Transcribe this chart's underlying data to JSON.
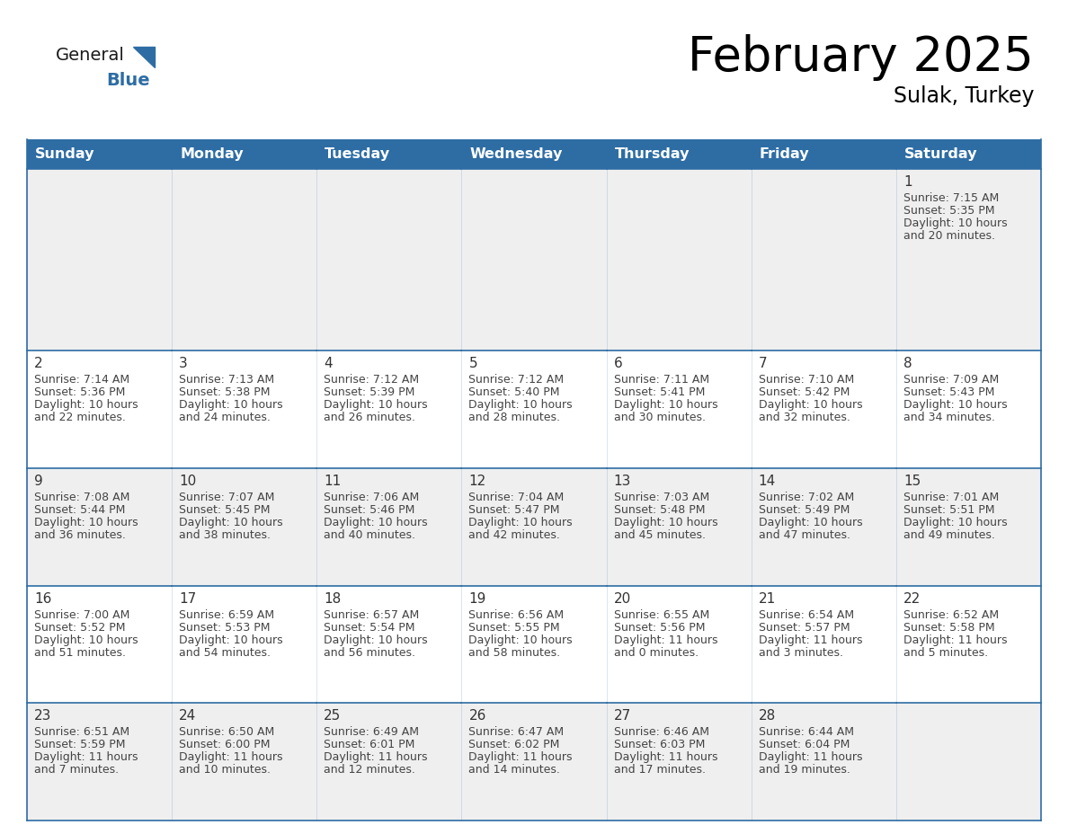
{
  "title": "February 2025",
  "subtitle": "Sulak, Turkey",
  "days_of_week": [
    "Sunday",
    "Monday",
    "Tuesday",
    "Wednesday",
    "Thursday",
    "Friday",
    "Saturday"
  ],
  "header_bg": "#2E6DA4",
  "header_text": "#FFFFFF",
  "cell_bg_gray": "#EFEFEF",
  "cell_bg_white": "#FFFFFF",
  "border_color": "#2E6DA4",
  "text_color": "#444444",
  "day_num_color": "#333333",
  "general_blue_color": "#2E6DA4",
  "calendar": [
    [
      null,
      null,
      null,
      null,
      null,
      null,
      {
        "day": 1,
        "sunrise": "7:15 AM",
        "sunset": "5:35 PM",
        "daylight": "10 hours",
        "daylight2": "and 20 minutes."
      }
    ],
    [
      {
        "day": 2,
        "sunrise": "7:14 AM",
        "sunset": "5:36 PM",
        "daylight": "10 hours",
        "daylight2": "and 22 minutes."
      },
      {
        "day": 3,
        "sunrise": "7:13 AM",
        "sunset": "5:38 PM",
        "daylight": "10 hours",
        "daylight2": "and 24 minutes."
      },
      {
        "day": 4,
        "sunrise": "7:12 AM",
        "sunset": "5:39 PM",
        "daylight": "10 hours",
        "daylight2": "and 26 minutes."
      },
      {
        "day": 5,
        "sunrise": "7:12 AM",
        "sunset": "5:40 PM",
        "daylight": "10 hours",
        "daylight2": "and 28 minutes."
      },
      {
        "day": 6,
        "sunrise": "7:11 AM",
        "sunset": "5:41 PM",
        "daylight": "10 hours",
        "daylight2": "and 30 minutes."
      },
      {
        "day": 7,
        "sunrise": "7:10 AM",
        "sunset": "5:42 PM",
        "daylight": "10 hours",
        "daylight2": "and 32 minutes."
      },
      {
        "day": 8,
        "sunrise": "7:09 AM",
        "sunset": "5:43 PM",
        "daylight": "10 hours",
        "daylight2": "and 34 minutes."
      }
    ],
    [
      {
        "day": 9,
        "sunrise": "7:08 AM",
        "sunset": "5:44 PM",
        "daylight": "10 hours",
        "daylight2": "and 36 minutes."
      },
      {
        "day": 10,
        "sunrise": "7:07 AM",
        "sunset": "5:45 PM",
        "daylight": "10 hours",
        "daylight2": "and 38 minutes."
      },
      {
        "day": 11,
        "sunrise": "7:06 AM",
        "sunset": "5:46 PM",
        "daylight": "10 hours",
        "daylight2": "and 40 minutes."
      },
      {
        "day": 12,
        "sunrise": "7:04 AM",
        "sunset": "5:47 PM",
        "daylight": "10 hours",
        "daylight2": "and 42 minutes."
      },
      {
        "day": 13,
        "sunrise": "7:03 AM",
        "sunset": "5:48 PM",
        "daylight": "10 hours",
        "daylight2": "and 45 minutes."
      },
      {
        "day": 14,
        "sunrise": "7:02 AM",
        "sunset": "5:49 PM",
        "daylight": "10 hours",
        "daylight2": "and 47 minutes."
      },
      {
        "day": 15,
        "sunrise": "7:01 AM",
        "sunset": "5:51 PM",
        "daylight": "10 hours",
        "daylight2": "and 49 minutes."
      }
    ],
    [
      {
        "day": 16,
        "sunrise": "7:00 AM",
        "sunset": "5:52 PM",
        "daylight": "10 hours",
        "daylight2": "and 51 minutes."
      },
      {
        "day": 17,
        "sunrise": "6:59 AM",
        "sunset": "5:53 PM",
        "daylight": "10 hours",
        "daylight2": "and 54 minutes."
      },
      {
        "day": 18,
        "sunrise": "6:57 AM",
        "sunset": "5:54 PM",
        "daylight": "10 hours",
        "daylight2": "and 56 minutes."
      },
      {
        "day": 19,
        "sunrise": "6:56 AM",
        "sunset": "5:55 PM",
        "daylight": "10 hours",
        "daylight2": "and 58 minutes."
      },
      {
        "day": 20,
        "sunrise": "6:55 AM",
        "sunset": "5:56 PM",
        "daylight": "11 hours",
        "daylight2": "and 0 minutes."
      },
      {
        "day": 21,
        "sunrise": "6:54 AM",
        "sunset": "5:57 PM",
        "daylight": "11 hours",
        "daylight2": "and 3 minutes."
      },
      {
        "day": 22,
        "sunrise": "6:52 AM",
        "sunset": "5:58 PM",
        "daylight": "11 hours",
        "daylight2": "and 5 minutes."
      }
    ],
    [
      {
        "day": 23,
        "sunrise": "6:51 AM",
        "sunset": "5:59 PM",
        "daylight": "11 hours",
        "daylight2": "and 7 minutes."
      },
      {
        "day": 24,
        "sunrise": "6:50 AM",
        "sunset": "6:00 PM",
        "daylight": "11 hours",
        "daylight2": "and 10 minutes."
      },
      {
        "day": 25,
        "sunrise": "6:49 AM",
        "sunset": "6:01 PM",
        "daylight": "11 hours",
        "daylight2": "and 12 minutes."
      },
      {
        "day": 26,
        "sunrise": "6:47 AM",
        "sunset": "6:02 PM",
        "daylight": "11 hours",
        "daylight2": "and 14 minutes."
      },
      {
        "day": 27,
        "sunrise": "6:46 AM",
        "sunset": "6:03 PM",
        "daylight": "11 hours",
        "daylight2": "and 17 minutes."
      },
      {
        "day": 28,
        "sunrise": "6:44 AM",
        "sunset": "6:04 PM",
        "daylight": "11 hours",
        "daylight2": "and 19 minutes."
      },
      null
    ]
  ]
}
